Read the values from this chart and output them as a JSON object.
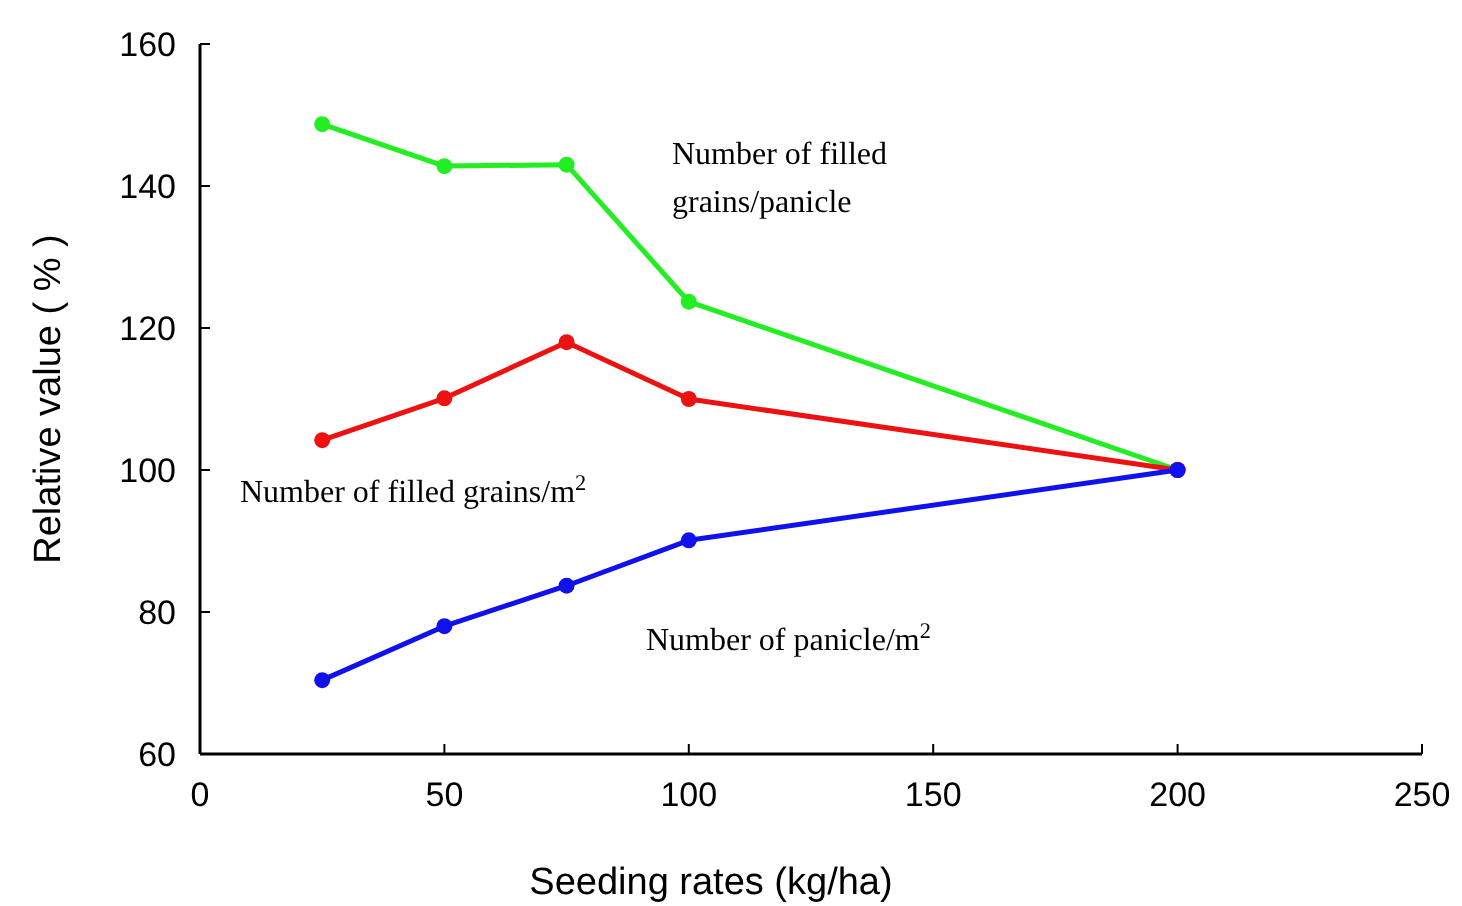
{
  "chart_data": {
    "type": "line",
    "xlabel": "Seeding rates (kg/ha)",
    "ylabel": "Relative value ( % )",
    "x": [
      25,
      50,
      75,
      100,
      200
    ],
    "series": [
      {
        "name": "Number of filled grains/panicle",
        "color": "#22ee22",
        "values": [
          148.7,
          142.8,
          143,
          123.7,
          100
        ]
      },
      {
        "name": "Number of filled grains/m$^{2}$",
        "color": "#ee1111",
        "values": [
          104.2,
          110.1,
          118,
          110,
          100
        ]
      },
      {
        "name": "Number of panicle/m$^{2}$",
        "color": "#1111ee",
        "values": [
          70.4,
          78,
          83.7,
          90.1,
          100
        ]
      }
    ],
    "xlim": [
      0,
      250
    ],
    "xticks": [
      0,
      50,
      100,
      150,
      200,
      250
    ],
    "ylim": [
      60,
      160
    ],
    "yticks": [
      60,
      80,
      100,
      120,
      140,
      160
    ],
    "grid": false,
    "marker": "circle",
    "line_style": "solid"
  }
}
